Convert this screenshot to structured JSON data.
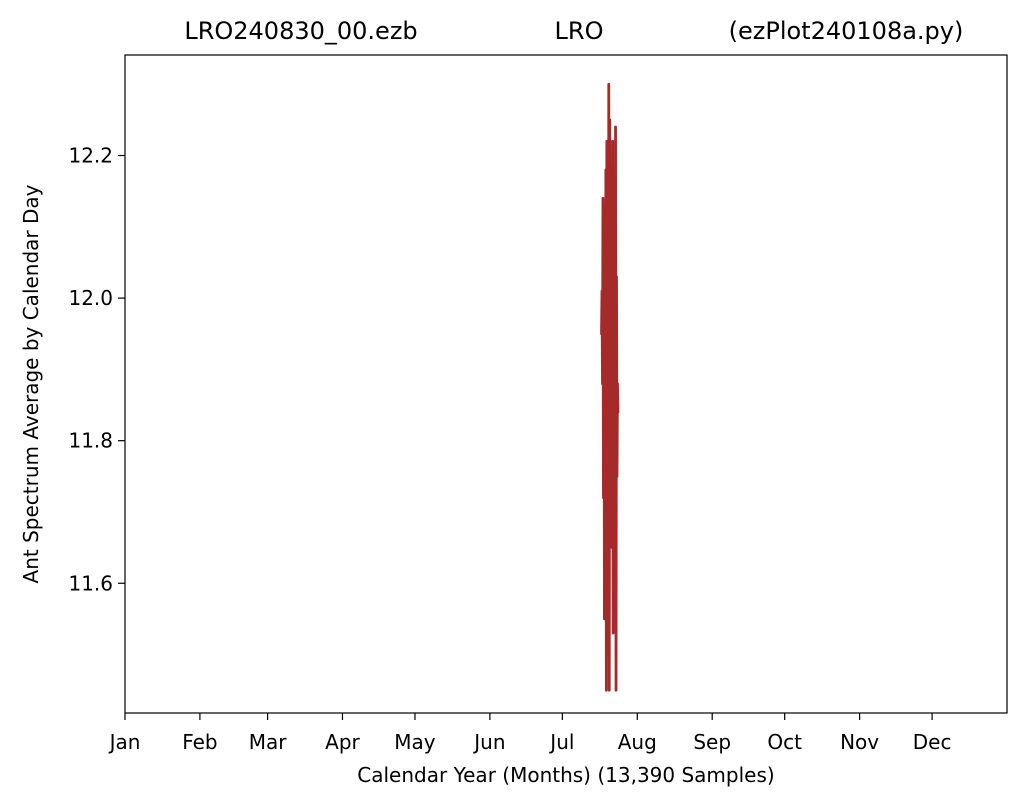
{
  "title": {
    "left": "LRO240830_00.ezb",
    "center": "LRO",
    "right": "(ezPlot240108a.py)"
  },
  "chart_data": {
    "type": "line",
    "title": "LRO240830_00.ezb LRO (ezPlot240108a.py)",
    "xlabel": "Calendar Year (Months) (13,390 Samples)",
    "ylabel": "Ant Spectrum Average by Calendar Day",
    "x_tick_labels": [
      "Jan",
      "Feb",
      "Mar",
      "Apr",
      "May",
      "Jun",
      "Jul",
      "Aug",
      "Sep",
      "Oct",
      "Nov",
      "Dec"
    ],
    "x_tick_days": [
      0,
      31,
      59,
      90,
      120,
      151,
      181,
      212,
      243,
      273,
      304,
      334
    ],
    "xlim": [
      0,
      365
    ],
    "y_tick_values": [
      11.6,
      11.8,
      12.0,
      12.2
    ],
    "y_tick_labels": [
      "11.6",
      "11.8",
      "12.0",
      "12.2"
    ],
    "ylim": [
      11.418,
      12.341
    ],
    "grid": false,
    "series": [
      {
        "color": "#a52a2a",
        "x": [
          197.2,
          197.4,
          197.6,
          197.8,
          198.0,
          198.2,
          198.4,
          198.6,
          198.8,
          199.0,
          199.2,
          199.4,
          199.6,
          199.8,
          200.0,
          200.2,
          200.4,
          200.6,
          200.8,
          201.0,
          201.2,
          201.4,
          201.6,
          201.8,
          202.0,
          202.2,
          202.4,
          202.6,
          202.8,
          203.0,
          203.2,
          203.4,
          203.6,
          203.8,
          204.0
        ],
        "y": [
          11.95,
          12.01,
          11.88,
          12.14,
          11.72,
          12.13,
          11.55,
          12.09,
          11.62,
          12.18,
          11.45,
          12.22,
          11.58,
          12.15,
          11.5,
          12.3,
          11.45,
          12.25,
          11.7,
          12.05,
          11.85,
          11.95,
          11.65,
          12.22,
          11.53,
          12.11,
          11.78,
          11.99,
          11.6,
          12.24,
          11.45,
          12.03,
          11.75,
          11.88,
          11.84
        ]
      }
    ]
  }
}
